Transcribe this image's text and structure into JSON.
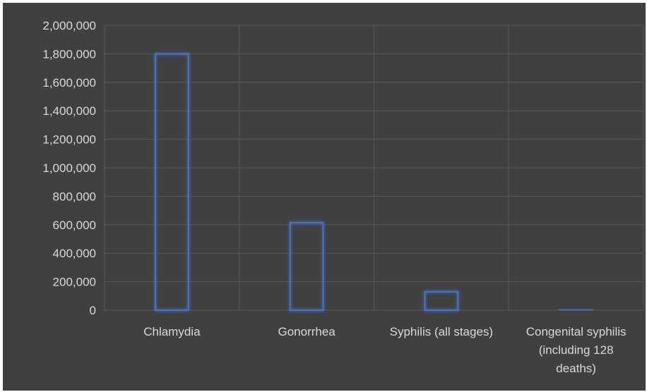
{
  "chart_data": {
    "type": "bar",
    "categories": [
      [
        "Chlamydia"
      ],
      [
        "Gonorrhea"
      ],
      [
        "Syphilis (all stages)"
      ],
      [
        "Congenital syphilis",
        "(including 128",
        "deaths)"
      ]
    ],
    "values": [
      1800000,
      615000,
      130000,
      2000
    ],
    "ylim": [
      0,
      2000000
    ],
    "yticks": [
      0,
      200000,
      400000,
      600000,
      800000,
      1000000,
      1200000,
      1400000,
      1600000,
      1800000,
      2000000
    ],
    "ytick_labels": [
      "0",
      "200,000",
      "400,000",
      "600,000",
      "800,000",
      "1,000,000",
      "1,200,000",
      "1,400,000",
      "1,600,000",
      "1,800,000",
      "2,000,000"
    ],
    "grid": true,
    "legend": "none",
    "colors": {
      "background": "#404040",
      "bar_outline": "#4472c4",
      "grid": "#595959",
      "text": "#d9d9d9"
    }
  }
}
